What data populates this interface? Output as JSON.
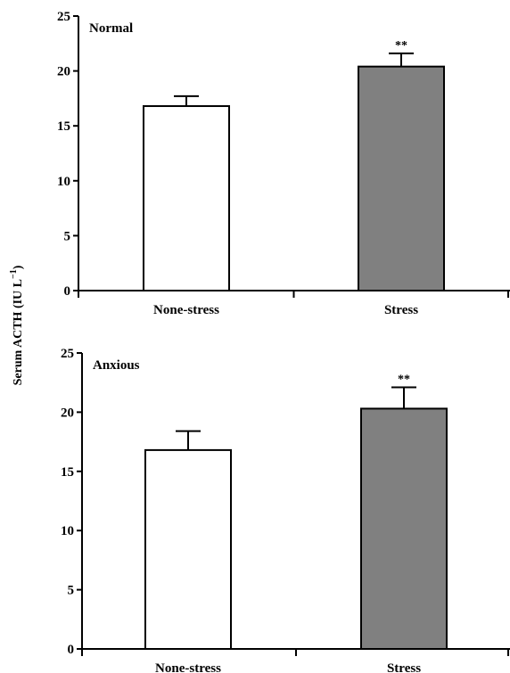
{
  "chart_data": [
    {
      "type": "bar",
      "panel_label": "Normal",
      "categories": [
        "None-stress",
        "Stress"
      ],
      "values": [
        16.8,
        20.4
      ],
      "errors": [
        0.9,
        1.2
      ],
      "significance": [
        "",
        "**"
      ],
      "bar_colors": [
        "#ffffff",
        "#808080"
      ],
      "yticks": [
        "0",
        "5",
        "10",
        "15",
        "20",
        "25"
      ],
      "ylim": [
        0,
        25
      ],
      "grid": false
    },
    {
      "type": "bar",
      "panel_label": "Anxious",
      "categories": [
        "None-stress",
        "Stress"
      ],
      "values": [
        16.8,
        20.3
      ],
      "errors": [
        1.6,
        1.8
      ],
      "significance": [
        "",
        "**"
      ],
      "bar_colors": [
        "#ffffff",
        "#808080"
      ],
      "yticks": [
        "0",
        "5",
        "10",
        "15",
        "20",
        "25"
      ],
      "ylim": [
        0,
        25
      ],
      "grid": false
    }
  ],
  "ylabel": {
    "main": "Serum ACTH (IU L",
    "superscript": "−1",
    "close": ")"
  }
}
